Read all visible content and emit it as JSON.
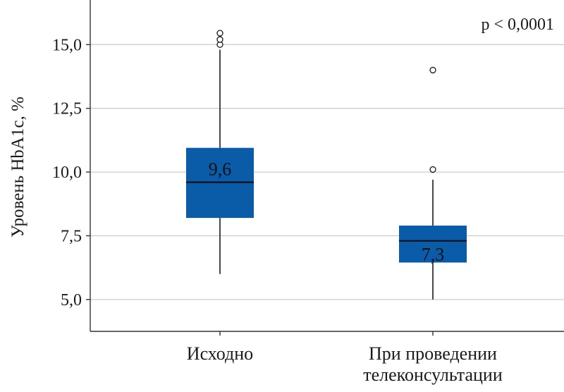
{
  "chart_data": {
    "type": "boxplot",
    "ylabel": "Уровень HbA1c, %",
    "xlabel": "",
    "ylim": [
      3.75,
      16.75
    ],
    "yticks": [
      5.0,
      7.5,
      10.0,
      12.5,
      15.0
    ],
    "ytick_labels": [
      "5,0",
      "7,5",
      "10,0",
      "12,5",
      "15,0"
    ],
    "grid": true,
    "box_color": "#0a5ba8",
    "annotation": "p < 0,0001",
    "groups": [
      {
        "label_lines": [
          "Исходно"
        ],
        "min": 6.0,
        "q1": 8.2,
        "median": 9.6,
        "q3": 10.95,
        "max": 14.8,
        "outliers": [
          15.0,
          15.2,
          15.45
        ],
        "median_label": "9,6"
      },
      {
        "label_lines": [
          "При проведении",
          "телеконсультации"
        ],
        "min": 5.0,
        "q1": 6.45,
        "median": 7.3,
        "q3": 7.9,
        "max": 9.7,
        "outliers": [
          10.1,
          14.0
        ],
        "median_label": "7,3"
      }
    ]
  }
}
